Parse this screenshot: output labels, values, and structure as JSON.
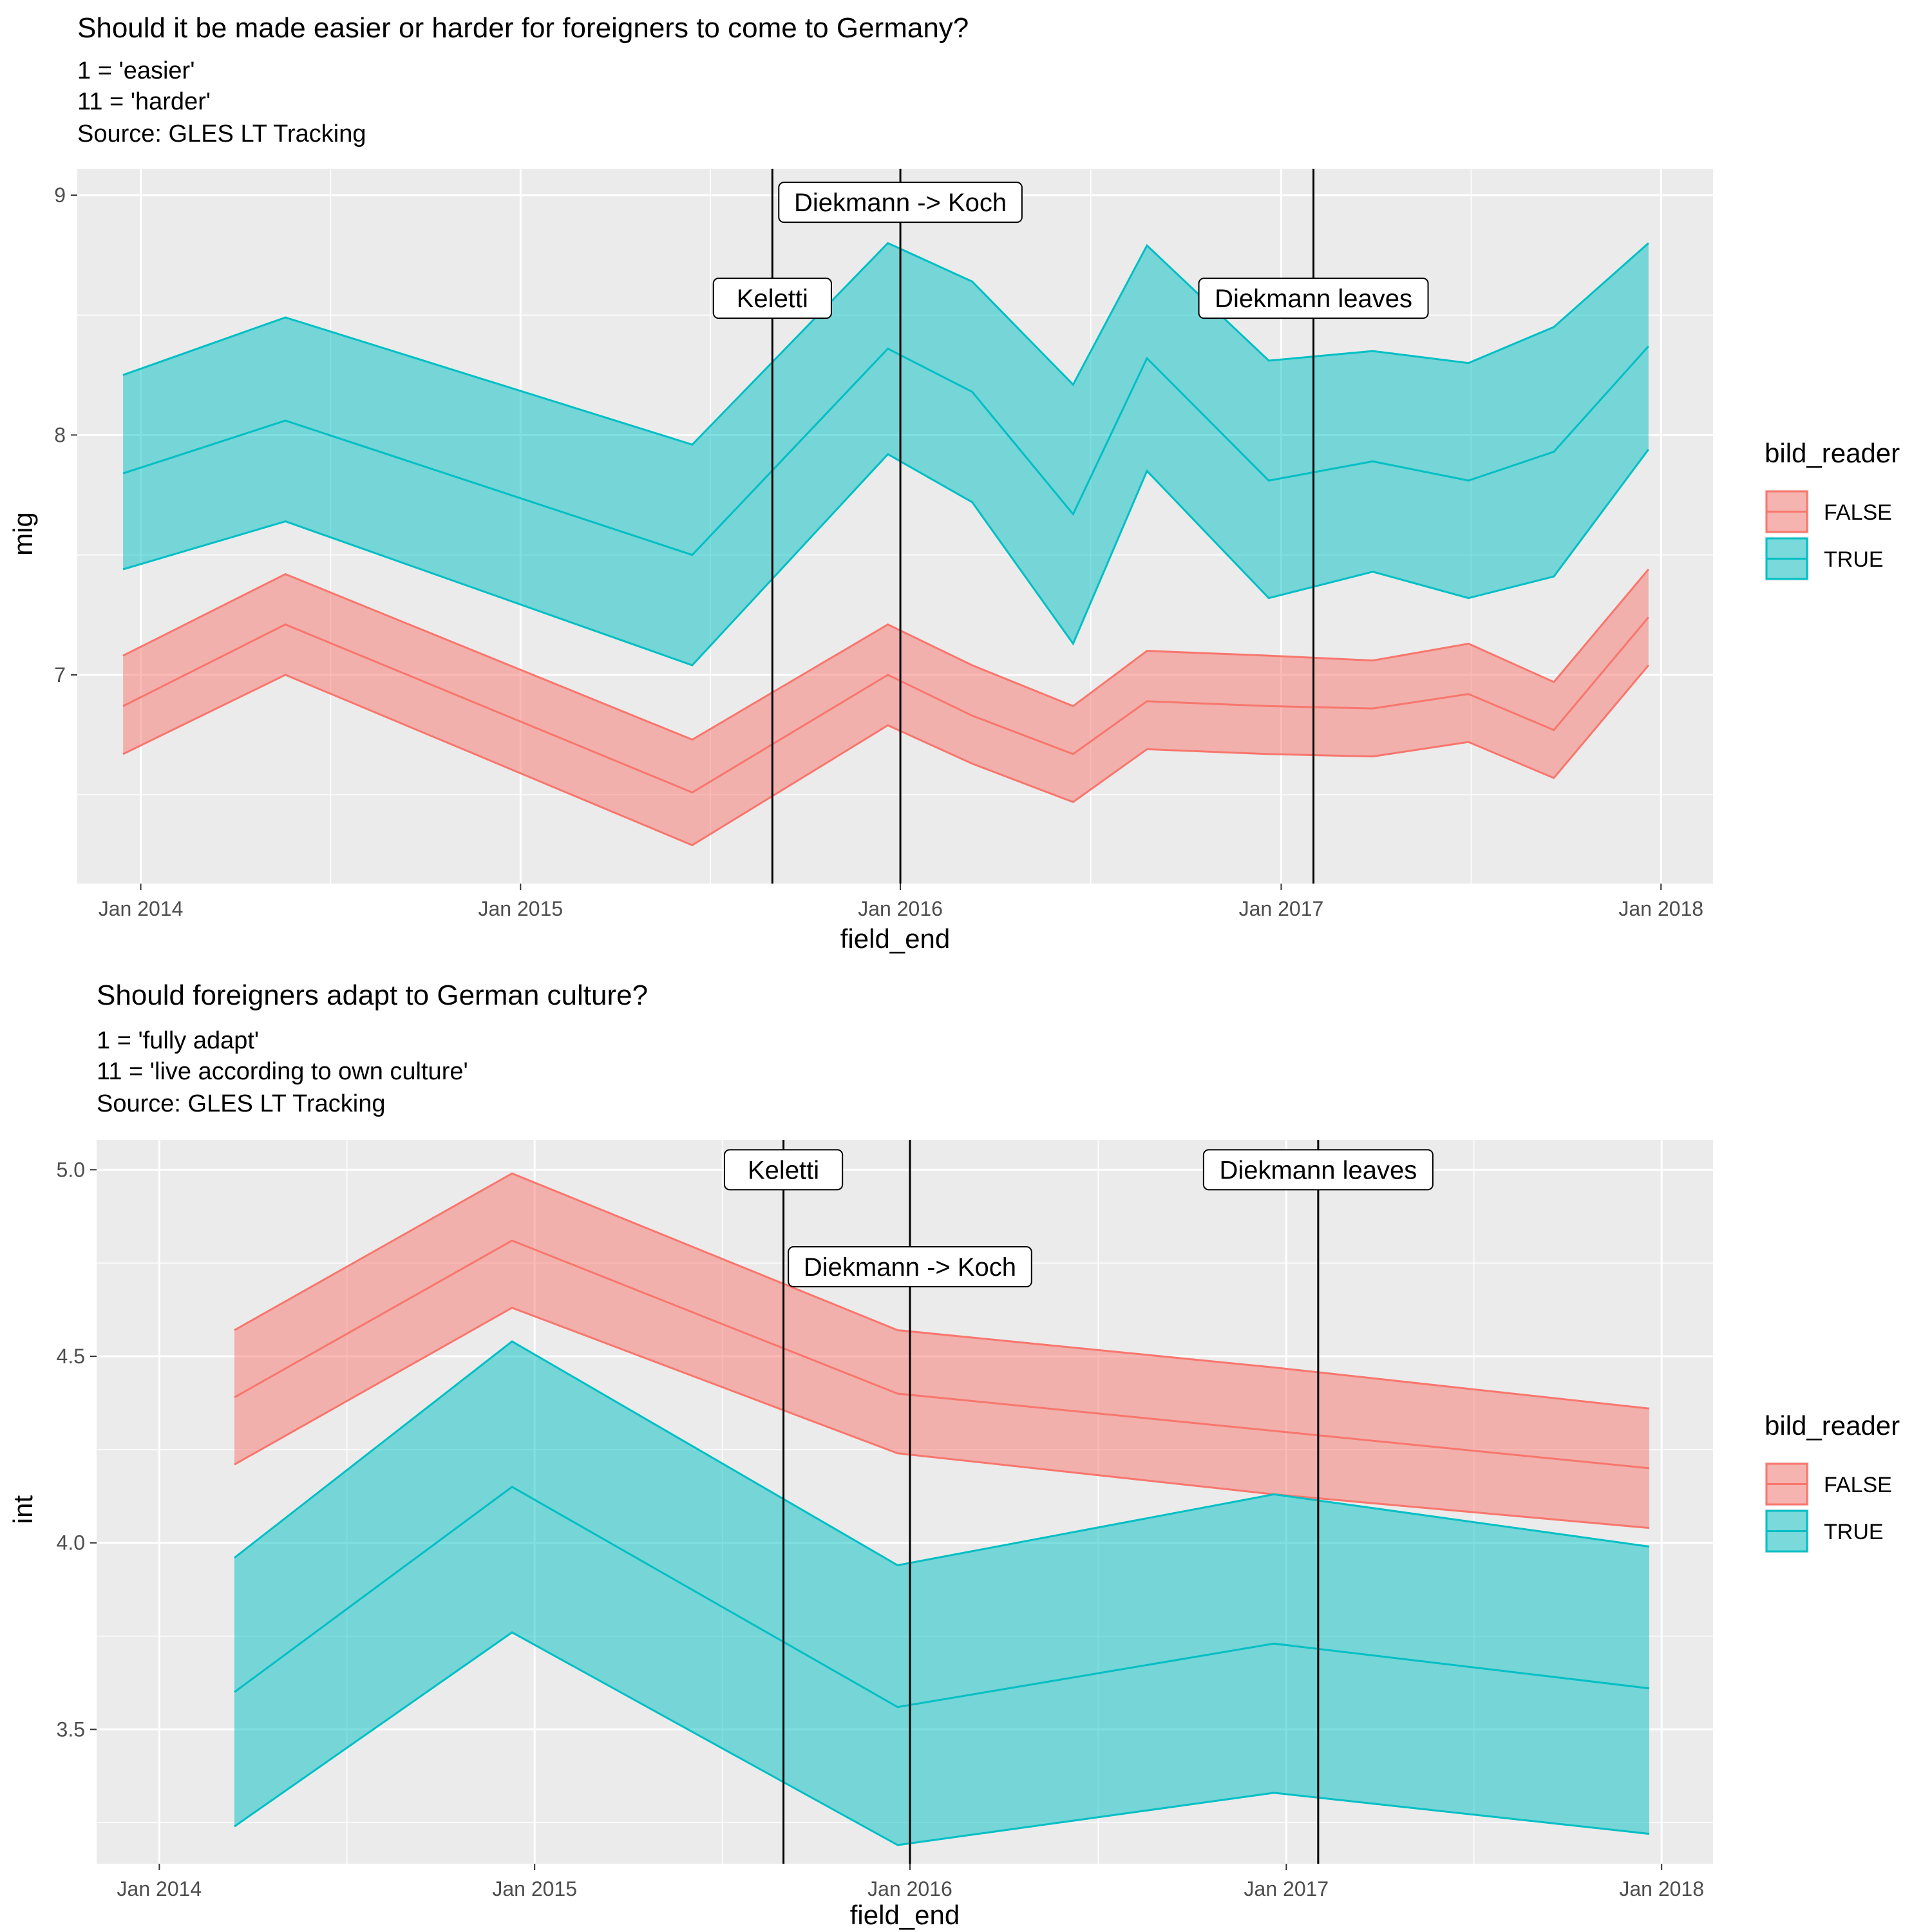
{
  "chart_data": [
    {
      "type": "area",
      "title": "Should it be made easier or harder for foreigners to come to Germany?",
      "subtitle": [
        "1 = 'easier'",
        "11 = 'harder'",
        "Source: GLES LT Tracking"
      ],
      "xlabel": "field_end",
      "ylabel": "mig",
      "xlim": [
        "2013-11-01",
        "2018-02-20"
      ],
      "ylim": [
        6.13,
        9.11
      ],
      "x_ticks": [
        "2014-01-01",
        "2015-01-01",
        "2016-01-01",
        "2017-01-01",
        "2018-01-01"
      ],
      "x_tick_labels": [
        "Jan 2014",
        "Jan 2015",
        "Jan 2016",
        "Jan 2017",
        "Jan 2018"
      ],
      "y_ticks": [
        7,
        8,
        9
      ],
      "y_tick_labels": [
        "7",
        "8",
        "9"
      ],
      "legend": {
        "title": "bild_reader",
        "placement": "right",
        "entries": [
          "FALSE",
          "TRUE"
        ]
      },
      "series": [
        {
          "name": "FALSE",
          "color": "#F8766D",
          "x": [
            "2013-12-15",
            "2014-05-20",
            "2015-06-15",
            "2015-12-20",
            "2016-03-10",
            "2016-06-15",
            "2016-08-25",
            "2016-12-20",
            "2017-03-30",
            "2017-06-30",
            "2017-09-20",
            "2017-12-20"
          ],
          "y": [
            6.87,
            7.21,
            6.51,
            7.0,
            6.83,
            6.67,
            6.89,
            6.87,
            6.86,
            6.92,
            6.77,
            7.24
          ],
          "ymin": [
            6.67,
            7.0,
            6.29,
            6.79,
            6.63,
            6.47,
            6.69,
            6.67,
            6.66,
            6.72,
            6.57,
            7.04
          ],
          "ymax": [
            7.08,
            7.42,
            6.73,
            7.21,
            7.04,
            6.87,
            7.1,
            7.08,
            7.06,
            7.13,
            6.97,
            7.44
          ]
        },
        {
          "name": "TRUE",
          "color": "#00BFC4",
          "x": [
            "2013-12-15",
            "2014-05-20",
            "2015-06-15",
            "2015-12-20",
            "2016-03-10",
            "2016-06-15",
            "2016-08-25",
            "2016-12-20",
            "2017-03-30",
            "2017-06-30",
            "2017-09-20",
            "2017-12-20"
          ],
          "y": [
            7.84,
            8.06,
            7.5,
            8.36,
            8.18,
            7.67,
            8.32,
            7.81,
            7.89,
            7.81,
            7.93,
            8.37
          ],
          "ymin": [
            7.44,
            7.64,
            7.04,
            7.92,
            7.72,
            7.13,
            7.85,
            7.32,
            7.43,
            7.32,
            7.41,
            7.94
          ],
          "ymax": [
            8.25,
            8.49,
            7.96,
            8.8,
            8.64,
            8.21,
            8.79,
            8.31,
            8.35,
            8.3,
            8.45,
            8.8
          ]
        }
      ],
      "annotations": [
        {
          "x": "2015-08-31",
          "label": "Keletti",
          "label_y": 8.57
        },
        {
          "x": "2016-01-01",
          "label": "Diekmann -> Koch",
          "label_y": 8.97
        },
        {
          "x": "2017-02-01",
          "label": "Diekmann leaves",
          "label_y": 8.57
        }
      ]
    },
    {
      "type": "area",
      "title": "Should foreigners adapt to German culture?",
      "subtitle": [
        "1 = 'fully adapt'",
        "11 = 'live according to own culture'",
        "Source: GLES LT Tracking"
      ],
      "xlabel": "field_end",
      "ylabel": "int",
      "xlim": [
        "2013-11-01",
        "2018-02-20"
      ],
      "ylim": [
        3.14,
        5.08
      ],
      "x_ticks": [
        "2014-01-01",
        "2015-01-01",
        "2016-01-01",
        "2017-01-01",
        "2018-01-01"
      ],
      "x_tick_labels": [
        "Jan 2014",
        "Jan 2015",
        "Jan 2016",
        "Jan 2017",
        "Jan 2018"
      ],
      "y_ticks": [
        3.5,
        4.0,
        4.5,
        5.0
      ],
      "y_tick_labels": [
        "3.5",
        "4.0",
        "4.5",
        "5.0"
      ],
      "legend": {
        "title": "bild_reader",
        "placement": "right",
        "entries": [
          "FALSE",
          "TRUE"
        ]
      },
      "series": [
        {
          "name": "FALSE",
          "color": "#F8766D",
          "x": [
            "2014-03-15",
            "2014-12-10",
            "2015-12-20",
            "2016-12-20",
            "2017-12-20"
          ],
          "y": [
            4.39,
            4.81,
            4.4,
            4.3,
            4.2
          ],
          "ymin": [
            4.21,
            4.63,
            4.24,
            4.13,
            4.04
          ],
          "ymax": [
            4.57,
            4.99,
            4.57,
            4.47,
            4.36
          ]
        },
        {
          "name": "TRUE",
          "color": "#00BFC4",
          "x": [
            "2014-03-15",
            "2014-12-10",
            "2015-12-20",
            "2016-12-20",
            "2017-12-20"
          ],
          "y": [
            3.6,
            4.15,
            3.56,
            3.73,
            3.61
          ],
          "ymin": [
            3.24,
            3.76,
            3.19,
            3.33,
            3.22
          ],
          "ymax": [
            3.96,
            4.54,
            3.94,
            4.13,
            3.99
          ]
        }
      ],
      "annotations": [
        {
          "x": "2015-08-31",
          "label": "Keletti",
          "label_y": 5.0
        },
        {
          "x": "2016-01-01",
          "label": "Diekmann -> Koch",
          "label_y": 4.74
        },
        {
          "x": "2017-02-01",
          "label": "Diekmann leaves",
          "label_y": 5.0
        }
      ]
    }
  ]
}
